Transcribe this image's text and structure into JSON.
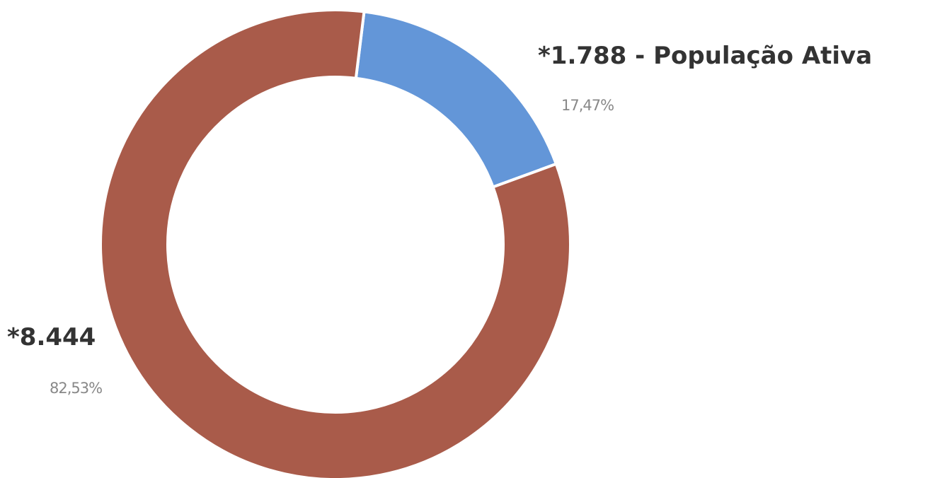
{
  "chart_data": {
    "type": "donut",
    "categories": [
      "*1.788 - População Ativa",
      "*8.444"
    ],
    "values": [
      17.47,
      82.53
    ],
    "value_labels": [
      "17,47%",
      "82,53%"
    ],
    "colors": [
      "#6396d8",
      "#a95b4a"
    ]
  }
}
